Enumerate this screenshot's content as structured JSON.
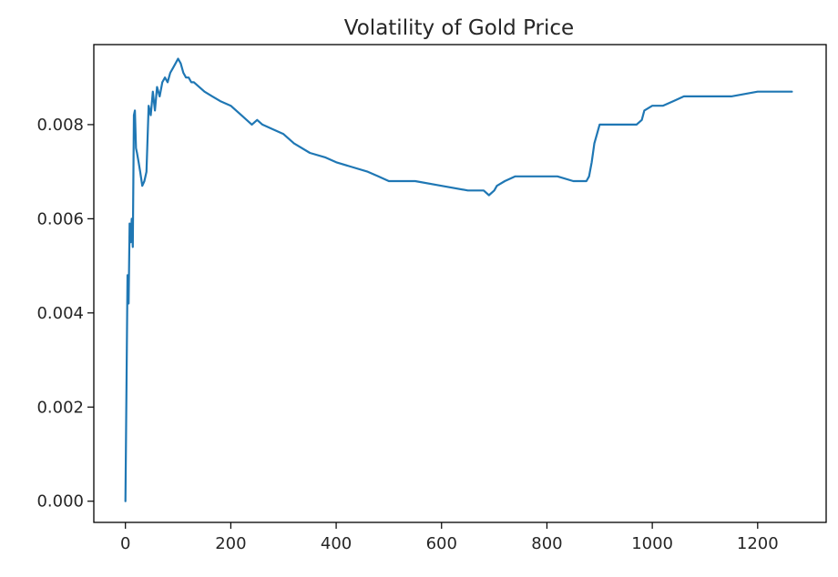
{
  "chart_data": {
    "type": "line",
    "title": "Volatility of Gold Price",
    "xlabel": "",
    "ylabel": "",
    "xlim": [
      -60,
      1330
    ],
    "ylim": [
      -0.00045,
      0.0097
    ],
    "grid": false,
    "legend": "none",
    "x_ticks": [
      0,
      200,
      400,
      600,
      800,
      1000,
      1200
    ],
    "x_tick_labels": [
      "0",
      "200",
      "400",
      "600",
      "800",
      "1000",
      "1200"
    ],
    "y_ticks": [
      0.0,
      0.002,
      0.004,
      0.006,
      0.008
    ],
    "y_tick_labels": [
      "0.000",
      "0.002",
      "0.004",
      "0.006",
      "0.008"
    ],
    "series": [
      {
        "color": "#1f77b4",
        "x": [
          0,
          2,
          4,
          6,
          8,
          10,
          12,
          14,
          16,
          18,
          20,
          22,
          25,
          28,
          32,
          36,
          40,
          44,
          48,
          52,
          56,
          60,
          65,
          70,
          75,
          80,
          85,
          90,
          95,
          100,
          105,
          110,
          115,
          120,
          125,
          130,
          140,
          150,
          165,
          180,
          200,
          220,
          240,
          250,
          260,
          280,
          300,
          320,
          350,
          380,
          400,
          430,
          460,
          480,
          500,
          550,
          600,
          650,
          680,
          690,
          700,
          705,
          720,
          740,
          760,
          780,
          800,
          820,
          850,
          875,
          880,
          885,
          890,
          895,
          900,
          920,
          950,
          970,
          980,
          985,
          1000,
          1020,
          1040,
          1060,
          1080,
          1100,
          1150,
          1200,
          1220,
          1240,
          1250,
          1265
        ],
        "y": [
          0.0,
          0.0025,
          0.0048,
          0.0042,
          0.0059,
          0.0055,
          0.006,
          0.0054,
          0.0082,
          0.0083,
          0.0075,
          0.0074,
          0.0072,
          0.007,
          0.0067,
          0.0068,
          0.007,
          0.0084,
          0.0082,
          0.0087,
          0.0083,
          0.0088,
          0.0086,
          0.0089,
          0.009,
          0.0089,
          0.0091,
          0.0092,
          0.0093,
          0.0094,
          0.0093,
          0.0091,
          0.009,
          0.009,
          0.0089,
          0.0089,
          0.0088,
          0.0087,
          0.0086,
          0.0085,
          0.0084,
          0.0082,
          0.008,
          0.0081,
          0.008,
          0.0079,
          0.0078,
          0.0076,
          0.0074,
          0.0073,
          0.0072,
          0.0071,
          0.007,
          0.0069,
          0.0068,
          0.0068,
          0.0067,
          0.0066,
          0.0066,
          0.0065,
          0.0066,
          0.0067,
          0.0068,
          0.0069,
          0.0069,
          0.0069,
          0.0069,
          0.0069,
          0.0068,
          0.0068,
          0.0069,
          0.0072,
          0.0076,
          0.0078,
          0.008,
          0.008,
          0.008,
          0.008,
          0.0081,
          0.0083,
          0.0084,
          0.0084,
          0.0085,
          0.0086,
          0.0086,
          0.0086,
          0.0086,
          0.0087,
          0.0087,
          0.0087,
          0.0087,
          0.0087
        ]
      }
    ]
  }
}
